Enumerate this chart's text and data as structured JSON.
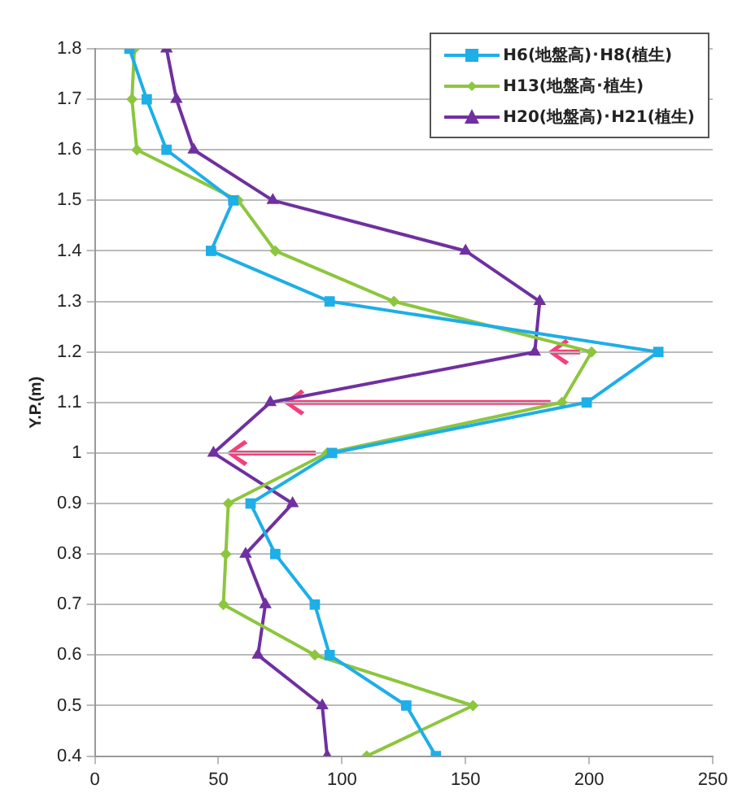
{
  "chart_data": {
    "type": "line",
    "ylabel": "Y.P.(m)",
    "xlim": [
      0,
      250
    ],
    "xticks": [
      0,
      50,
      100,
      150,
      200,
      250
    ],
    "ylim": [
      0.4,
      1.8
    ],
    "yticks": [
      {
        "value": 0.4,
        "label": "0.4"
      },
      {
        "value": 0.5,
        "label": "0.5"
      },
      {
        "value": 0.6,
        "label": "0.6"
      },
      {
        "value": 0.7,
        "label": "0.7"
      },
      {
        "value": 0.8,
        "label": "0.8"
      },
      {
        "value": 0.9,
        "label": "0.9"
      },
      {
        "value": 1,
        "label": "1"
      },
      {
        "value": 1.1,
        "label": "1.1"
      },
      {
        "value": 1.2,
        "label": "1.2"
      },
      {
        "value": 1.3,
        "label": "1.3"
      },
      {
        "value": 1.4,
        "label": "1.4"
      },
      {
        "value": 1.5,
        "label": "1.5"
      },
      {
        "value": 1.6,
        "label": "1.6"
      },
      {
        "value": 1.7,
        "label": "1.7"
      },
      {
        "value": 1.8,
        "label": "1.8"
      }
    ],
    "grid": "y",
    "legend": "top right",
    "series": [
      {
        "name": "H6(地盤高)･H8(植生)",
        "color": "#1eaee8",
        "marker": "square",
        "x": [
          138,
          126,
          95,
          89,
          73,
          63,
          96,
          199,
          228,
          95,
          47,
          56,
          29,
          21,
          14
        ],
        "values": [
          0.4,
          0.5,
          0.6,
          0.7,
          0.8,
          0.9,
          1.0,
          1.1,
          1.2,
          1.3,
          1.4,
          1.5,
          1.6,
          1.7,
          1.8
        ]
      },
      {
        "name": "H13(地盤高･植生)",
        "color": "#8cc63e",
        "marker": "diamond",
        "x": [
          110,
          153,
          89,
          52,
          53,
          54,
          94,
          189,
          201,
          121,
          73,
          58,
          17,
          15,
          16
        ],
        "values": [
          0.4,
          0.5,
          0.6,
          0.7,
          0.8,
          0.9,
          1.0,
          1.1,
          1.2,
          1.3,
          1.4,
          1.5,
          1.6,
          1.7,
          1.8
        ]
      },
      {
        "name": "H20(地盤高)･H21(植生)",
        "color": "#7030a0",
        "marker": "triangle",
        "x": [
          94,
          92,
          66,
          69,
          61,
          80,
          48,
          71,
          178,
          180,
          150,
          72,
          40,
          33,
          29
        ],
        "values": [
          0.4,
          0.5,
          0.6,
          0.7,
          0.8,
          0.9,
          1.0,
          1.1,
          1.2,
          1.3,
          1.4,
          1.5,
          1.6,
          1.7,
          1.8
        ]
      }
    ]
  }
}
